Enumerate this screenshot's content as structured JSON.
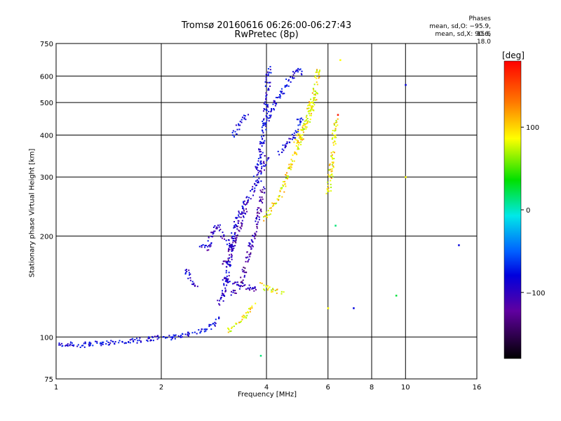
{
  "chart_data": {
    "type": "scatter",
    "title": "Tromsø 20160616 06:26:00-06:27:43",
    "subtitle": "RwPretec (8p)",
    "xlabel": "Frequency [MHz]",
    "ylabel": "Stationary phase Virtual Height [km]",
    "x_scale": "log",
    "y_scale": "log",
    "xlim": [
      1,
      16
    ],
    "ylim": [
      75,
      750
    ],
    "x_ticks": [
      1,
      2,
      4,
      6,
      8,
      10,
      16
    ],
    "y_ticks": [
      75,
      100,
      200,
      300,
      400,
      500,
      600,
      750
    ],
    "grid": true,
    "stats_box": {
      "title": "Phases",
      "line_o": "mean, sd,O: −95.9, 15.6",
      "line_x": "mean, sd,X: 90.6, 18.0"
    },
    "colorbar": {
      "label": "[deg]",
      "range": [
        -180,
        180
      ],
      "ticks": [
        100,
        0,
        -100
      ],
      "position": "right"
    },
    "traces": [
      {
        "x": [
          1.0,
          1.15,
          1.3,
          1.5,
          1.7,
          1.85,
          2.0,
          2.15,
          2.3,
          2.5,
          2.65,
          2.8,
          2.9
        ],
        "y": [
          96,
          95,
          96,
          97,
          98,
          99,
          100,
          100,
          102,
          104,
          105,
          110,
          115
        ],
        "phase": -100
      },
      {
        "x": [
          2.9,
          3.0,
          3.1,
          3.2,
          3.3,
          3.45,
          3.6,
          3.75,
          3.9,
          4.0
        ],
        "y": [
          125,
          135,
          160,
          200,
          230,
          250,
          270,
          290,
          320,
          350
        ],
        "phase": -110
      },
      {
        "x": [
          3.7,
          3.8,
          3.9,
          3.95,
          4.0,
          4.05
        ],
        "y": [
          300,
          340,
          400,
          460,
          540,
          640
        ],
        "phase": -100
      },
      {
        "x": [
          3.95,
          4.1,
          4.3,
          4.5,
          4.7,
          4.9,
          5.0
        ],
        "y": [
          430,
          470,
          520,
          560,
          600,
          630,
          600
        ],
        "phase": -100
      },
      {
        "x": [
          4.3,
          4.5,
          4.7,
          4.9,
          5.0
        ],
        "y": [
          350,
          370,
          390,
          420,
          460
        ],
        "phase": -100
      },
      {
        "x": [
          3.2,
          3.4,
          3.6,
          3.8,
          3.9
        ],
        "y": [
          135,
          150,
          190,
          240,
          280
        ],
        "phase": -130
      },
      {
        "x": [
          3.0,
          3.3,
          3.6,
          3.8
        ],
        "y": [
          150,
          145,
          140,
          140
        ],
        "phase": -120
      },
      {
        "x": [
          2.55,
          2.7,
          2.8,
          2.9,
          3.0,
          3.1,
          3.2
        ],
        "y": [
          190,
          185,
          210,
          215,
          200,
          190,
          180
        ],
        "phase": -115
      },
      {
        "x": [
          3.0,
          3.1,
          3.2,
          3.3,
          3.4,
          3.5
        ],
        "y": [
          165,
          175,
          190,
          210,
          230,
          250
        ],
        "phase": -130
      },
      {
        "x": [
          2.35,
          2.4,
          2.45,
          2.5
        ],
        "y": [
          160,
          150,
          145,
          143
        ],
        "phase": -110
      },
      {
        "x": [
          3.2,
          3.35,
          3.5
        ],
        "y": [
          400,
          440,
          460
        ],
        "phase": -100
      },
      {
        "x": [
          3.9,
          4.1,
          4.3,
          4.5,
          4.7,
          4.9,
          5.1,
          5.3,
          5.5,
          5.6
        ],
        "y": [
          225,
          240,
          260,
          290,
          330,
          370,
          420,
          480,
          550,
          640
        ],
        "phase": 100
      },
      {
        "x": [
          4.8,
          5.0,
          5.2,
          5.4,
          5.5
        ],
        "y": [
          380,
          410,
          440,
          480,
          540
        ],
        "phase": 100
      },
      {
        "x": [
          3.8,
          4.0,
          4.2,
          4.4
        ],
        "y": [
          145,
          140,
          138,
          136
        ],
        "phase": 100
      },
      {
        "x": [
          3.1,
          3.3,
          3.5,
          3.7
        ],
        "y": [
          105,
          110,
          118,
          125
        ],
        "phase": 100
      },
      {
        "x": [
          6.0,
          6.3
        ],
        "y": [
          270,
          450
        ],
        "phase": 100
      }
    ],
    "points": [
      {
        "x": 10.0,
        "y": 565,
        "phase": -100
      },
      {
        "x": 14.2,
        "y": 188,
        "phase": -100
      },
      {
        "x": 7.1,
        "y": 122,
        "phase": -100
      },
      {
        "x": 9.4,
        "y": 133,
        "phase": 30
      },
      {
        "x": 6.4,
        "y": 460,
        "phase": 170
      },
      {
        "x": 6.3,
        "y": 215,
        "phase": 20
      },
      {
        "x": 6.5,
        "y": 670,
        "phase": 100
      },
      {
        "x": 10.0,
        "y": 300,
        "phase": 100
      },
      {
        "x": 6.0,
        "y": 122,
        "phase": 100
      },
      {
        "x": 3.85,
        "y": 88,
        "phase": 20
      }
    ]
  }
}
